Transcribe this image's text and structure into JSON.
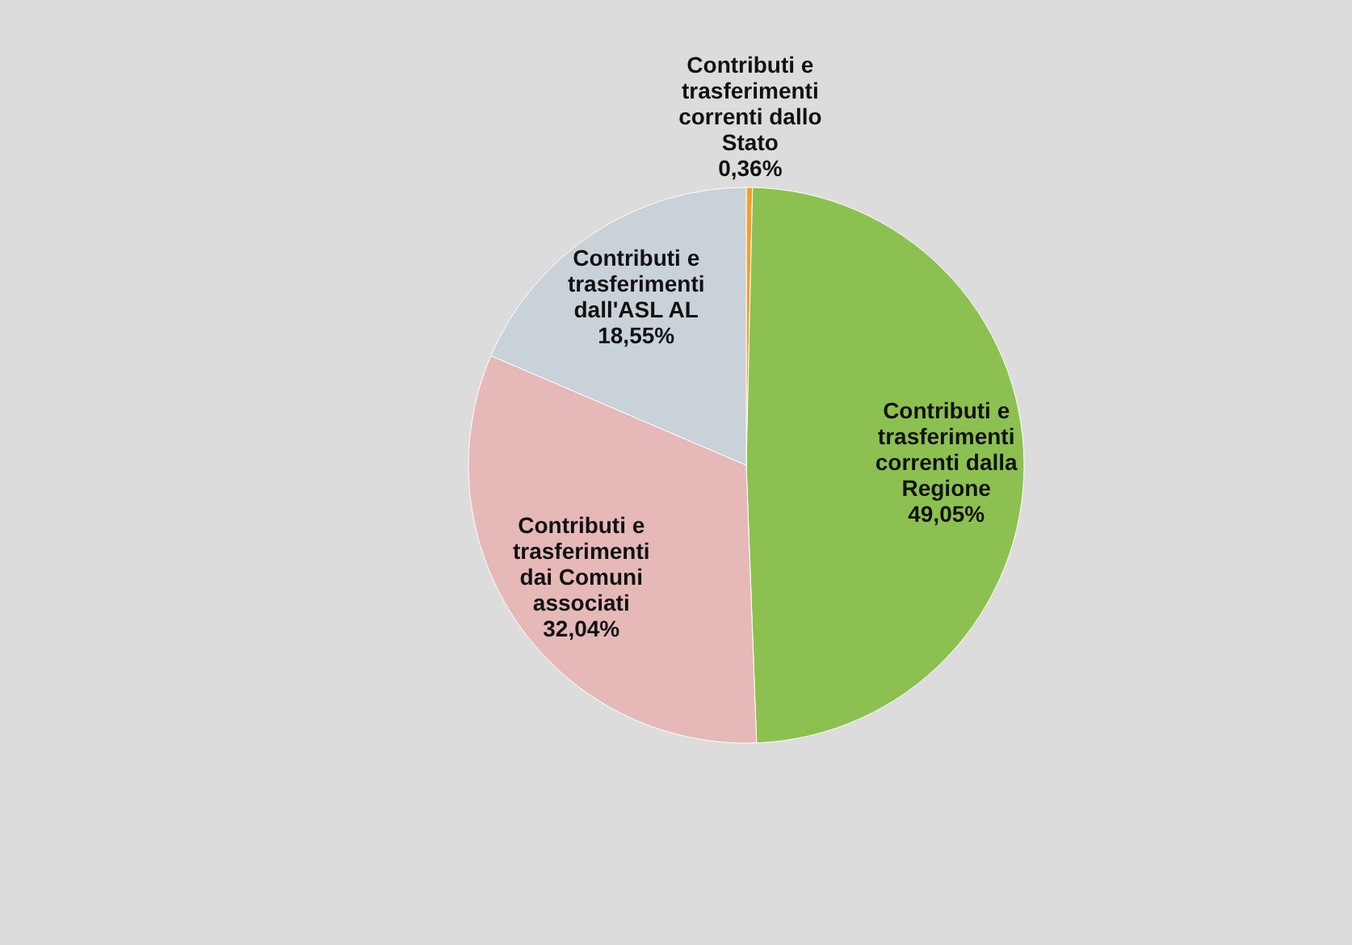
{
  "chart_data": {
    "type": "pie",
    "categories": [
      "Contributi e trasferimenti correnti dallo Stato",
      "Contributi e trasferimenti correnti dalla Regione",
      "Contributi e trasferimenti dai Comuni associati",
      "Contributi e trasferimenti dall'ASL AL"
    ],
    "values": [
      0.36,
      49.05,
      32.04,
      18.55
    ],
    "value_labels": [
      "0,36%",
      "49,05%",
      "32,04%",
      "18,55%"
    ],
    "colors": [
      "#f0a030",
      "#8cc152",
      "#e6b8b8",
      "#c9d1d9"
    ]
  }
}
